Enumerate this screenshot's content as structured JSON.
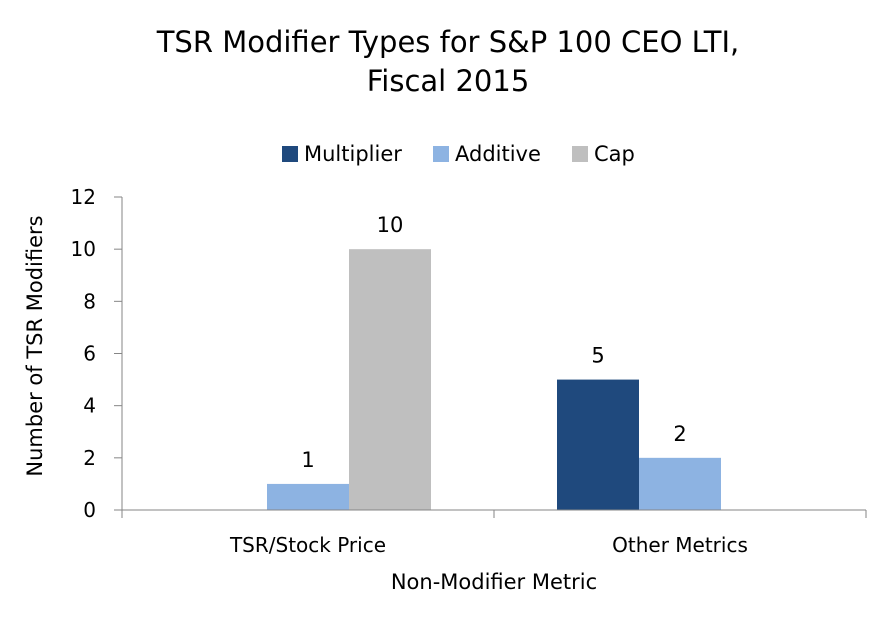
{
  "chart_data": {
    "type": "bar",
    "title_lines": [
      "TSR Modifier Types for S&P 100 CEO LTI,",
      "Fiscal 2015"
    ],
    "xlabel": "Non-Modifier Metric",
    "ylabel": "Number of TSR Modifiers",
    "categories": [
      "TSR/Stock Price",
      "Other Metrics"
    ],
    "series": [
      {
        "name": "Multiplier",
        "color": "#1f497d",
        "values": [
          0,
          5
        ],
        "labels": [
          "",
          "5"
        ]
      },
      {
        "name": "Additive",
        "color": "#8db3e2",
        "values": [
          1,
          2
        ],
        "labels": [
          "1",
          "2"
        ]
      },
      {
        "name": "Cap",
        "color": "#bfbfbf",
        "values": [
          10,
          0
        ],
        "labels": [
          "10",
          ""
        ]
      }
    ],
    "ylim": [
      0,
      12
    ],
    "yticks": [
      "0",
      "2",
      "4",
      "6",
      "8",
      "10",
      "12"
    ],
    "grid": false,
    "legend": "top"
  }
}
